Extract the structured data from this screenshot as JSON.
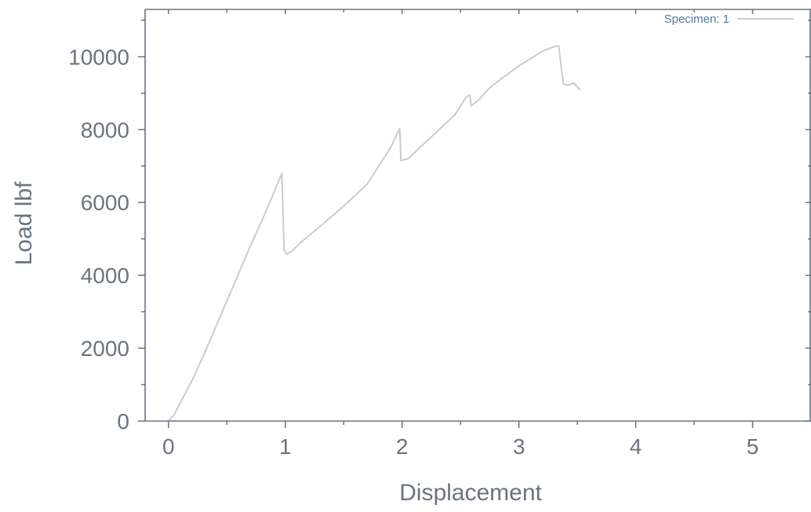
{
  "chart_data": {
    "type": "line",
    "xlabel": "Displacement",
    "ylabel": "Load lbf",
    "xlim": [
      -0.2,
      5.5
    ],
    "ylim": [
      0,
      11300
    ],
    "xticks": [
      0,
      1,
      2,
      3,
      4,
      5
    ],
    "xtick_labels": [
      "0",
      "1",
      "2",
      "3",
      "4",
      "5"
    ],
    "yticks": [
      0,
      2000,
      4000,
      6000,
      8000,
      10000
    ],
    "ytick_labels": [
      "0",
      "2000",
      "4000",
      "6000",
      "8000",
      "10000"
    ],
    "grid": false,
    "legend": {
      "position": "top-right"
    },
    "series": [
      {
        "name": "Specimen: 1",
        "color": "#c8cbcf",
        "points": [
          [
            0.0,
            0
          ],
          [
            0.05,
            180
          ],
          [
            0.1,
            500
          ],
          [
            0.2,
            1100
          ],
          [
            0.3,
            1800
          ],
          [
            0.4,
            2550
          ],
          [
            0.5,
            3300
          ],
          [
            0.6,
            4050
          ],
          [
            0.7,
            4800
          ],
          [
            0.8,
            5500
          ],
          [
            0.9,
            6250
          ],
          [
            0.97,
            6800
          ],
          [
            0.99,
            4700
          ],
          [
            1.01,
            4580
          ],
          [
            1.05,
            4650
          ],
          [
            1.15,
            4950
          ],
          [
            1.3,
            5350
          ],
          [
            1.5,
            5900
          ],
          [
            1.7,
            6500
          ],
          [
            1.9,
            7500
          ],
          [
            1.98,
            8030
          ],
          [
            1.99,
            7150
          ],
          [
            2.05,
            7200
          ],
          [
            2.15,
            7500
          ],
          [
            2.3,
            7950
          ],
          [
            2.45,
            8400
          ],
          [
            2.55,
            8900
          ],
          [
            2.58,
            8950
          ],
          [
            2.59,
            8650
          ],
          [
            2.65,
            8800
          ],
          [
            2.75,
            9150
          ],
          [
            2.85,
            9400
          ],
          [
            3.0,
            9750
          ],
          [
            3.1,
            9950
          ],
          [
            3.2,
            10150
          ],
          [
            3.3,
            10280
          ],
          [
            3.34,
            10300
          ],
          [
            3.38,
            9250
          ],
          [
            3.42,
            9220
          ],
          [
            3.47,
            9280
          ],
          [
            3.52,
            9100
          ]
        ]
      }
    ]
  },
  "colors": {
    "axis": "#6b7380",
    "tick_label": "#6b7380",
    "legend_text": "#4e7aa8",
    "curve": "#c8cbcf",
    "background": "#ffffff"
  }
}
